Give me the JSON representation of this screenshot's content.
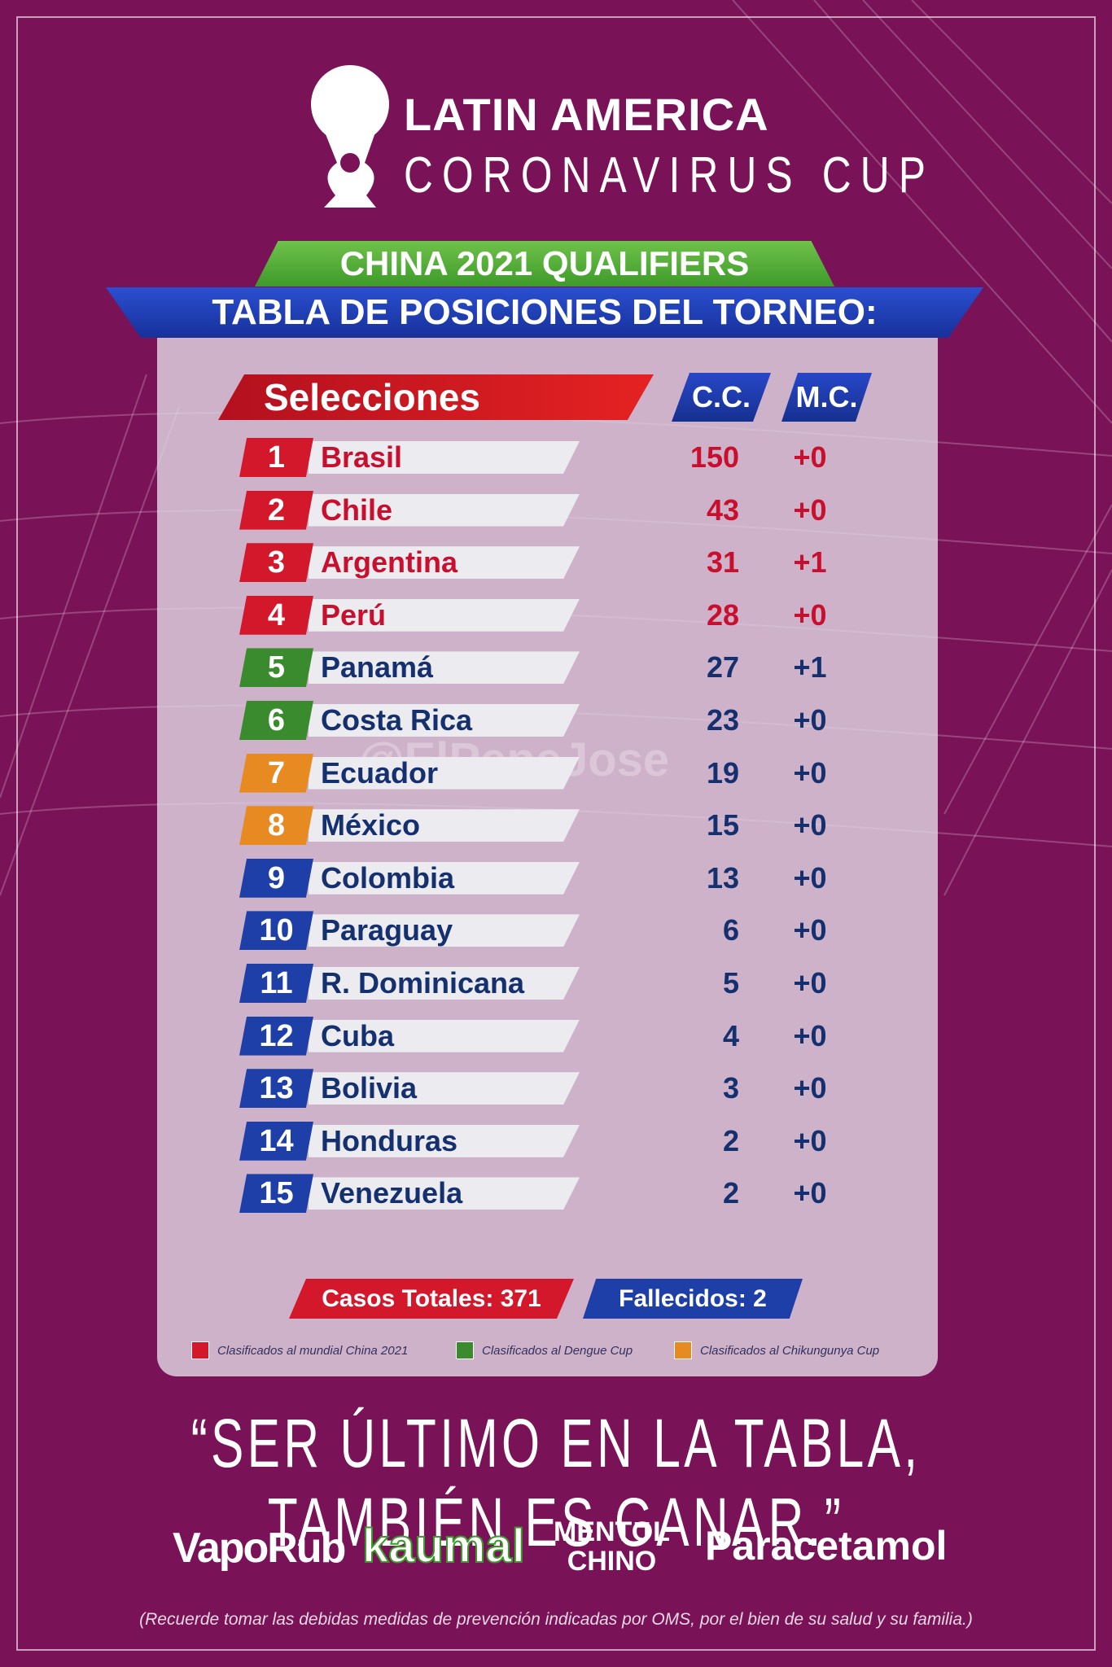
{
  "header": {
    "title_line1": "LATIN AMERICA",
    "title_line2": "CORONAVIRUS CUP",
    "banner1": "CHINA 2021 QUALIFIERS",
    "banner2": "TABLA DE POSICIONES DEL TORNEO:"
  },
  "watermark": "@ElPepeJose",
  "table": {
    "columns": [
      "Selecciones",
      "C.C.",
      "M.C."
    ],
    "rows": [
      {
        "rank": "1",
        "name": "Brasil",
        "cc": "150",
        "mc": "+0",
        "color": "#d3182b",
        "text_color": "#c8102e"
      },
      {
        "rank": "2",
        "name": "Chile",
        "cc": "43",
        "mc": "+0",
        "color": "#d3182b",
        "text_color": "#c8102e"
      },
      {
        "rank": "3",
        "name": "Argentina",
        "cc": "31",
        "mc": "+1",
        "color": "#d3182b",
        "text_color": "#c8102e"
      },
      {
        "rank": "4",
        "name": "Perú",
        "cc": "28",
        "mc": "+0",
        "color": "#d3182b",
        "text_color": "#c8102e"
      },
      {
        "rank": "5",
        "name": "Panamá",
        "cc": "27",
        "mc": "+1",
        "color": "#3a8a2e",
        "text_color": "#15306e"
      },
      {
        "rank": "6",
        "name": "Costa Rica",
        "cc": "23",
        "mc": "+0",
        "color": "#3a8a2e",
        "text_color": "#15306e"
      },
      {
        "rank": "7",
        "name": "Ecuador",
        "cc": "19",
        "mc": "+0",
        "color": "#e88a22",
        "text_color": "#15306e"
      },
      {
        "rank": "8",
        "name": "México",
        "cc": "15",
        "mc": "+0",
        "color": "#e88a22",
        "text_color": "#15306e"
      },
      {
        "rank": "9",
        "name": "Colombia",
        "cc": "13",
        "mc": "+0",
        "color": "#1f3fa8",
        "text_color": "#15306e"
      },
      {
        "rank": "10",
        "name": "Paraguay",
        "cc": "6",
        "mc": "+0",
        "color": "#1f3fa8",
        "text_color": "#15306e"
      },
      {
        "rank": "11",
        "name": "R. Dominicana",
        "cc": "5",
        "mc": "+0",
        "color": "#1f3fa8",
        "text_color": "#15306e"
      },
      {
        "rank": "12",
        "name": "Cuba",
        "cc": "4",
        "mc": "+0",
        "color": "#1f3fa8",
        "text_color": "#15306e"
      },
      {
        "rank": "13",
        "name": "Bolivia",
        "cc": "3",
        "mc": "+0",
        "color": "#1f3fa8",
        "text_color": "#15306e"
      },
      {
        "rank": "14",
        "name": "Honduras",
        "cc": "2",
        "mc": "+0",
        "color": "#1f3fa8",
        "text_color": "#15306e"
      },
      {
        "rank": "15",
        "name": "Venezuela",
        "cc": "2",
        "mc": "+0",
        "color": "#1f3fa8",
        "text_color": "#15306e"
      }
    ]
  },
  "totals": {
    "cases": "Casos Totales: 371",
    "deaths": "Fallecidos: 2"
  },
  "legend": [
    {
      "label": "Clasificados al mundial China 2021",
      "color": "#d3182b"
    },
    {
      "label": "Clasificados al Dengue Cup",
      "color": "#3a8a2e"
    },
    {
      "label": "Clasificados al Chikungunya Cup",
      "color": "#e88a22"
    }
  ],
  "quote": "“SER ÚLTIMO EN LA TABLA, TAMBIÉN ES GANAR.”",
  "sponsors": [
    "VapoRub",
    "kaumal",
    "MENTOL\nCHINO",
    "Paracetamol"
  ],
  "note": "(Recuerde tomar las debidas medidas de prevención indicadas por OMS, por el bien de su salud y su familia.)"
}
